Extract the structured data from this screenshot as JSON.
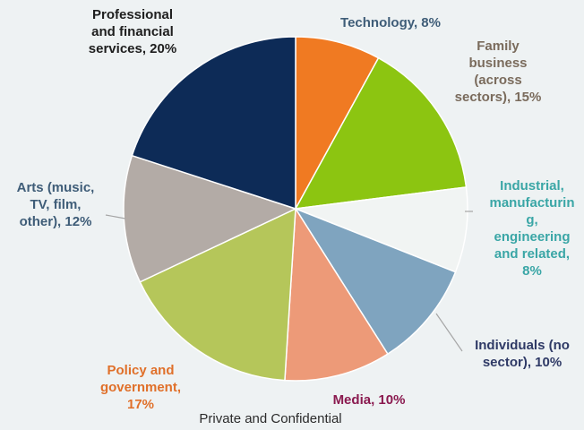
{
  "footer_text": "Private and Confidential",
  "chart_data": {
    "type": "pie",
    "title": "",
    "slices": [
      {
        "label_lines": [
          "Technology, 8%"
        ],
        "category": "Technology",
        "value": 8,
        "color": "#f07a22",
        "label_color": "#3f5d78"
      },
      {
        "label_lines": [
          "Family",
          "business",
          "(across",
          "sectors), 15%"
        ],
        "category": "Family business (across sectors)",
        "value": 15,
        "color": "#8cc511",
        "label_color": "#7a6b5c"
      },
      {
        "label_lines": [
          "Industrial,",
          "manufacturin",
          "g,",
          "engineering",
          "and related,",
          "8%"
        ],
        "category": "Industrial, manufacturing, engineering and related",
        "value": 8,
        "color": "#f1f4f3",
        "label_color": "#3aa6a6"
      },
      {
        "label_lines": [
          "Individuals (no",
          "sector), 10%"
        ],
        "category": "Individuals (no sector)",
        "value": 10,
        "color": "#7fa4bf",
        "label_color": "#2f3a66"
      },
      {
        "label_lines": [
          "Media, 10%"
        ],
        "category": "Media",
        "value": 10,
        "color": "#ed9a78",
        "label_color": "#8a1a4f"
      },
      {
        "label_lines": [
          "Policy and",
          "government,",
          "17%"
        ],
        "category": "Policy and government",
        "value": 17,
        "color": "#b5c65a",
        "label_color": "#e0702a"
      },
      {
        "label_lines": [
          "Arts (music,",
          "TV, film,",
          "other), 12%"
        ],
        "category": "Arts (music, TV, film, other)",
        "value": 12,
        "color": "#b3aba6",
        "label_color": "#3f5d78"
      },
      {
        "label_lines": [
          "Professional",
          "and financial",
          "services, 20%"
        ],
        "category": "Professional and financial services",
        "value": 20,
        "color": "#0d2b57",
        "label_color": "#1e1e1e"
      }
    ]
  }
}
